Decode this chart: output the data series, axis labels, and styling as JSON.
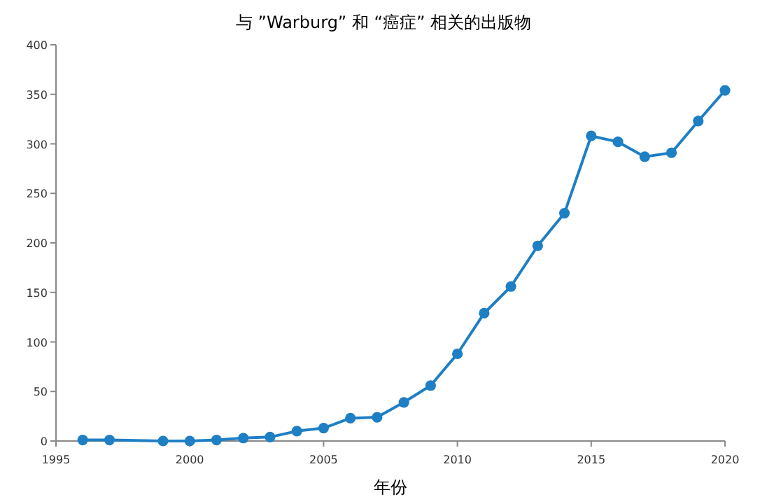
{
  "chart_data": {
    "type": "line",
    "title": "与 ”Warburg” 和 “癌症” 相关的出版物",
    "xlabel": "年份",
    "x": [
      1996,
      1997,
      1999,
      2000,
      2001,
      2002,
      2003,
      2004,
      2005,
      2006,
      2007,
      2008,
      2009,
      2010,
      2011,
      2012,
      2013,
      2014,
      2015,
      2016,
      2017,
      2018,
      2019,
      2020
    ],
    "series": [
      {
        "color": "#1f7fc4",
        "values": [
          1,
          1,
          0,
          0,
          1,
          3,
          4,
          10,
          13,
          23,
          24,
          39,
          56,
          88,
          129,
          156,
          197,
          230,
          308,
          302,
          287,
          291,
          323,
          354
        ]
      }
    ],
    "xlim": [
      1995,
      2020
    ],
    "xticks": [
      1995,
      2000,
      2005,
      2010,
      2015,
      2020
    ],
    "ylim": [
      0,
      400
    ],
    "yticks": [
      0,
      50,
      100,
      150,
      200,
      250,
      300,
      350,
      400
    ],
    "marker": "circle"
  }
}
